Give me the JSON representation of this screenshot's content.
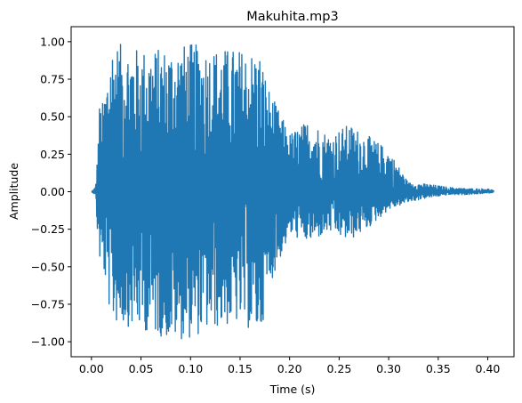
{
  "chart_data": {
    "type": "line",
    "title": "Makuhita.mp3",
    "xlabel": "Time (s)",
    "ylabel": "Amplitude",
    "xlim": [
      -0.0205,
      0.4265
    ],
    "ylim": [
      -1.1,
      1.1
    ],
    "xticks": [
      0.0,
      0.05,
      0.1,
      0.15,
      0.2,
      0.25,
      0.3,
      0.35,
      0.4
    ],
    "xtick_labels": [
      "0.00",
      "0.05",
      "0.10",
      "0.15",
      "0.20",
      "0.25",
      "0.30",
      "0.35",
      "0.40"
    ],
    "yticks": [
      -1.0,
      -0.75,
      -0.5,
      -0.25,
      0.0,
      0.25,
      0.5,
      0.75,
      1.0
    ],
    "ytick_labels": [
      "−1.00",
      "−0.75",
      "−0.50",
      "−0.25",
      "0.00",
      "0.25",
      "0.50",
      "0.75",
      "1.00"
    ],
    "grid": false,
    "series": [
      {
        "color": "#1f77b4",
        "duration": 0.406,
        "envelope": {
          "t": [
            0.0,
            0.004,
            0.006,
            0.008,
            0.012,
            0.02,
            0.05,
            0.08,
            0.1,
            0.12,
            0.15,
            0.17,
            0.18,
            0.2,
            0.22,
            0.24,
            0.26,
            0.28,
            0.3,
            0.32,
            0.34,
            0.36,
            0.38,
            0.4,
            0.406
          ],
          "max": [
            0.0,
            0.03,
            0.23,
            0.58,
            0.6,
            1.0,
            0.95,
            0.96,
            0.99,
            0.96,
            0.95,
            0.93,
            0.67,
            0.39,
            0.48,
            0.38,
            0.45,
            0.37,
            0.28,
            0.06,
            0.05,
            0.03,
            0.02,
            0.02,
            0.01
          ],
          "min": [
            0.0,
            -0.02,
            -0.28,
            -0.46,
            -0.52,
            -0.87,
            -0.92,
            -0.99,
            -0.98,
            -0.92,
            -0.88,
            -0.97,
            -0.62,
            -0.29,
            -0.34,
            -0.27,
            -0.33,
            -0.24,
            -0.12,
            -0.07,
            -0.04,
            -0.02,
            -0.02,
            -0.01,
            -0.005
          ]
        }
      }
    ]
  }
}
